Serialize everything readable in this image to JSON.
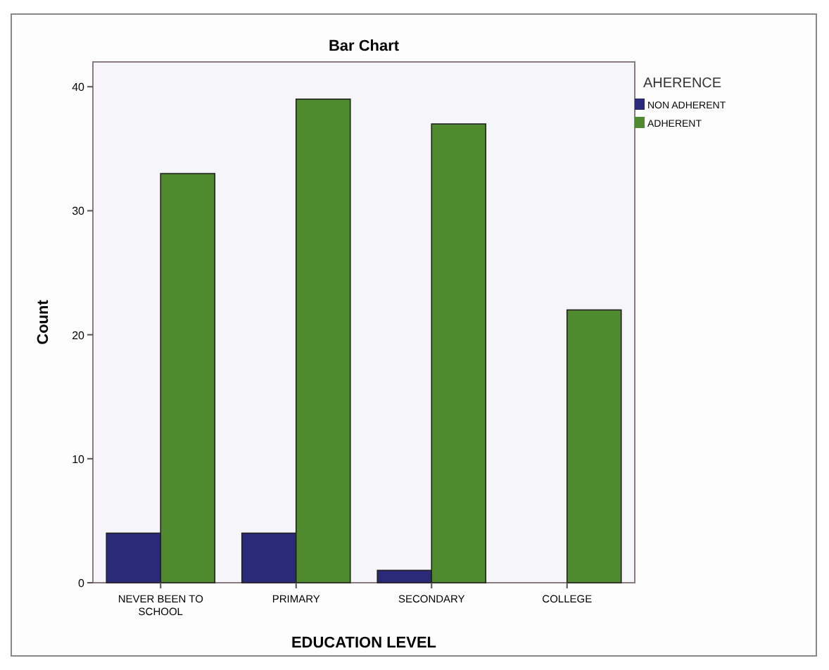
{
  "chart_data": {
    "type": "bar",
    "title": "Bar Chart",
    "xlabel": "EDUCATION LEVEL",
    "ylabel": "Count",
    "legend_title": "AHERENCE",
    "categories": [
      "NEVER BEEN TO SCHOOL",
      "PRIMARY",
      "SECONDARY",
      "COLLEGE"
    ],
    "series": [
      {
        "name": "NON ADHERENT",
        "color": "#2b2a78",
        "values": [
          4,
          4,
          1,
          0
        ]
      },
      {
        "name": "ADHERENT",
        "color": "#4f8a2e",
        "values": [
          33,
          39,
          37,
          22
        ]
      }
    ],
    "ylim": [
      0,
      42
    ],
    "yticks": [
      0,
      10,
      20,
      30,
      40
    ],
    "legend": "right",
    "grid": false
  }
}
